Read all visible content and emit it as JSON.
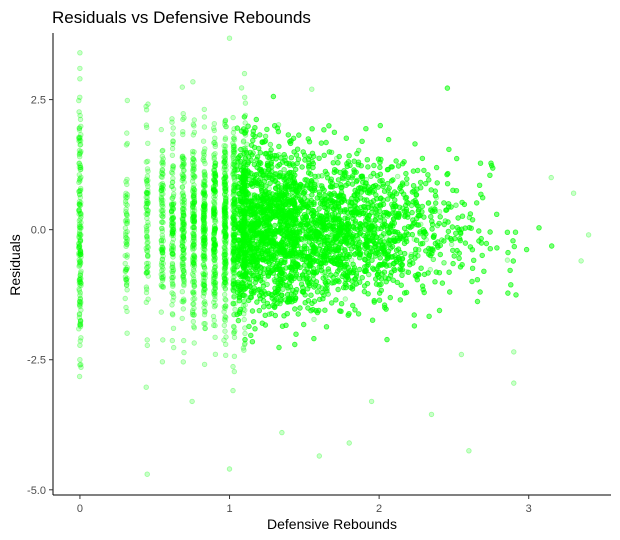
{
  "chart_data": {
    "type": "scatter",
    "title": "Residuals vs Defensive Rebounds",
    "xlabel": "Defensive Rebounds",
    "ylabel": "Residuals",
    "xlim": [
      -0.18,
      3.55
    ],
    "ylim": [
      -5.1,
      3.78
    ],
    "x_ticks": [
      0,
      1,
      2,
      3
    ],
    "x_tick_labels": [
      "0",
      "1",
      "2",
      "3"
    ],
    "y_ticks": [
      2.5,
      0,
      -2.5,
      -5
    ],
    "y_tick_labels": [
      "2.5",
      "0.0",
      "-2.5",
      "-5.0"
    ],
    "grid": false,
    "legend": "none",
    "point_color": "#00ff00",
    "point_opacity": 0.35,
    "notable_points": [
      {
        "x": 0.0,
        "y": 3.4
      },
      {
        "x": 0.0,
        "y": 3.1
      },
      {
        "x": 0.0,
        "y": 2.9
      },
      {
        "x": 0.0,
        "y": -2.6
      },
      {
        "x": 0.0,
        "y": -2.5
      },
      {
        "x": 1.0,
        "y": 3.7
      },
      {
        "x": 1.1,
        "y": 3.0
      },
      {
        "x": 1.55,
        "y": 2.7
      },
      {
        "x": 0.45,
        "y": -4.7
      },
      {
        "x": 1.0,
        "y": -4.6
      },
      {
        "x": 1.8,
        "y": -4.1
      },
      {
        "x": 1.6,
        "y": -4.35
      },
      {
        "x": 2.6,
        "y": -4.25
      },
      {
        "x": 1.35,
        "y": -3.9
      },
      {
        "x": 2.35,
        "y": -3.55
      },
      {
        "x": 2.9,
        "y": -2.95
      },
      {
        "x": 3.3,
        "y": 0.7
      },
      {
        "x": 3.4,
        "y": -0.1
      },
      {
        "x": 3.35,
        "y": -0.6
      },
      {
        "x": 3.15,
        "y": 1.0
      },
      {
        "x": 2.9,
        "y": -2.35
      },
      {
        "x": 2.55,
        "y": -2.4
      },
      {
        "x": 0.75,
        "y": -3.3
      },
      {
        "x": 1.95,
        "y": -3.3
      }
    ]
  }
}
